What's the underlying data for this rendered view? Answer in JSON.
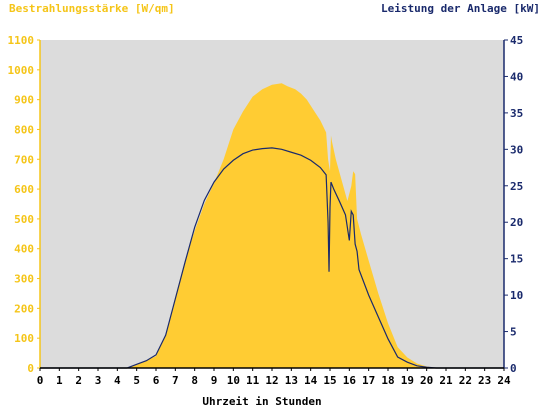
{
  "chart_data": {
    "type": "area",
    "left_axis_label": "Bestrahlungsstärke [W/qm]",
    "right_axis_label": "Leistung der Anlage [kW]",
    "xlabel": "Uhrzeit in Stunden",
    "xlim": [
      0,
      24
    ],
    "ylim_left": [
      0,
      1100
    ],
    "ylim_right": [
      0,
      45
    ],
    "x_ticks": [
      0,
      1,
      2,
      3,
      4,
      5,
      6,
      7,
      8,
      9,
      10,
      11,
      12,
      13,
      14,
      15,
      16,
      17,
      18,
      19,
      20,
      21,
      22,
      23,
      24
    ],
    "y_left_ticks": [
      0,
      100,
      200,
      300,
      400,
      500,
      600,
      700,
      800,
      900,
      1000,
      1100
    ],
    "y_right_ticks": [
      0,
      5,
      10,
      15,
      20,
      25,
      30,
      35,
      40,
      45
    ],
    "grid": false,
    "colors": {
      "plot_background": "#dcdcdc",
      "irradiance_fill": "#ffcc33",
      "power_line": "#1a2a6c",
      "left_axis": "#f5c518",
      "right_axis": "#1a2a6c"
    },
    "series": [
      {
        "kind": "area",
        "axis": "left",
        "x": [
          0,
          4.5,
          5,
          5.5,
          6,
          6.5,
          7,
          7.5,
          8,
          8.5,
          9,
          9.5,
          10,
          10.5,
          11,
          11.5,
          12,
          12.5,
          12.8,
          13,
          13.2,
          13.5,
          13.8,
          14,
          14.5,
          14.8,
          14.9,
          15,
          15.05,
          15.1,
          15.3,
          15.6,
          15.9,
          16.1,
          16.2,
          16.3,
          16.4,
          16.6,
          17,
          17.5,
          18,
          18.5,
          19,
          19.5,
          20,
          20.5,
          21,
          24
        ],
        "y": [
          0,
          0,
          10,
          25,
          40,
          110,
          240,
          360,
          460,
          550,
          620,
          700,
          800,
          860,
          910,
          935,
          950,
          955,
          945,
          940,
          935,
          920,
          900,
          880,
          830,
          790,
          700,
          660,
          780,
          760,
          700,
          630,
          560,
          610,
          660,
          650,
          500,
          450,
          360,
          250,
          150,
          70,
          35,
          15,
          5,
          0,
          0,
          0
        ]
      },
      {
        "kind": "line",
        "axis": "right",
        "x": [
          0,
          4.5,
          5,
          5.5,
          6,
          6.5,
          7,
          7.5,
          8,
          8.5,
          9,
          9.5,
          10,
          10.5,
          11,
          11.5,
          12,
          12.5,
          13,
          13.5,
          14,
          14.5,
          14.8,
          14.9,
          14.95,
          15,
          15.05,
          15.2,
          15.5,
          15.8,
          16,
          16.1,
          16.2,
          16.3,
          16.4,
          16.5,
          17,
          17.5,
          18,
          18.5,
          19,
          19.5,
          20,
          20.5,
          21,
          24
        ],
        "y": [
          0,
          0,
          0.5,
          1,
          1.8,
          4.5,
          9.5,
          14.5,
          19.3,
          23,
          25.5,
          27.3,
          28.5,
          29.4,
          29.9,
          30.1,
          30.2,
          30.0,
          29.6,
          29.2,
          28.5,
          27.5,
          26.5,
          20.0,
          13.2,
          22.0,
          25.5,
          24.5,
          22.8,
          21.0,
          17.5,
          21.5,
          21.0,
          17.0,
          16.0,
          13.5,
          10.0,
          7.0,
          4.0,
          1.5,
          0.8,
          0.3,
          0.1,
          0,
          0,
          0
        ]
      }
    ]
  }
}
